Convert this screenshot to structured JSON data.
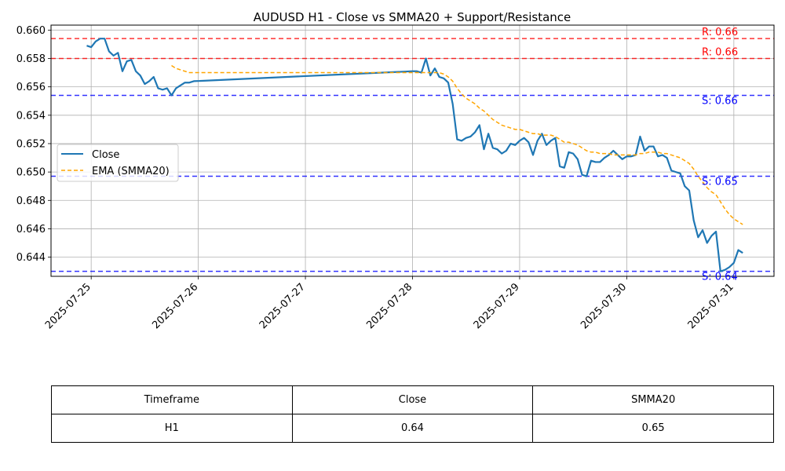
{
  "chart_data": {
    "type": "line",
    "title": "AUDUSD H1 - Close vs SMMA20 + Support/Resistance",
    "xlabel": "",
    "ylabel": "",
    "x_ticks": [
      "2025-07-25",
      "2025-07-26",
      "2025-07-27",
      "2025-07-28",
      "2025-07-29",
      "2025-07-30",
      "2025-07-31"
    ],
    "y_ticks": [
      "0.644",
      "0.646",
      "0.648",
      "0.650",
      "0.652",
      "0.654",
      "0.656",
      "0.658",
      "0.660"
    ],
    "ylim": [
      0.64265,
      0.66035
    ],
    "xlim": [
      "2025-07-24T15:00",
      "2025-07-31T09:00"
    ],
    "grid": true,
    "legend_position": "center-left",
    "series": [
      {
        "name": "Close",
        "color": "#1f77b4",
        "style": "solid",
        "points": [
          [
            "2025-07-24T23:00",
            0.6589
          ],
          [
            "2025-07-25T00:00",
            0.6588
          ],
          [
            "2025-07-25T01:00",
            0.6592
          ],
          [
            "2025-07-25T02:00",
            0.6594
          ],
          [
            "2025-07-25T03:00",
            0.6594
          ],
          [
            "2025-07-25T04:00",
            0.6585
          ],
          [
            "2025-07-25T05:00",
            0.6582
          ],
          [
            "2025-07-25T06:00",
            0.6584
          ],
          [
            "2025-07-25T07:00",
            0.6571
          ],
          [
            "2025-07-25T08:00",
            0.6578
          ],
          [
            "2025-07-25T09:00",
            0.6579
          ],
          [
            "2025-07-25T10:00",
            0.6571
          ],
          [
            "2025-07-25T11:00",
            0.6568
          ],
          [
            "2025-07-25T12:00",
            0.6562
          ],
          [
            "2025-07-25T13:00",
            0.6564
          ],
          [
            "2025-07-25T14:00",
            0.6567
          ],
          [
            "2025-07-25T15:00",
            0.6559
          ],
          [
            "2025-07-25T16:00",
            0.6558
          ],
          [
            "2025-07-25T17:00",
            0.6559
          ],
          [
            "2025-07-25T18:00",
            0.6554
          ],
          [
            "2025-07-25T19:00",
            0.6559
          ],
          [
            "2025-07-25T20:00",
            0.6561
          ],
          [
            "2025-07-25T21:00",
            0.6563
          ],
          [
            "2025-07-25T22:00",
            0.6563
          ],
          [
            "2025-07-25T23:00",
            0.6564
          ],
          [
            "2025-07-28T00:00",
            0.6571
          ],
          [
            "2025-07-28T01:00",
            0.6571
          ],
          [
            "2025-07-28T02:00",
            0.657
          ],
          [
            "2025-07-28T03:00",
            0.658
          ],
          [
            "2025-07-28T04:00",
            0.6568
          ],
          [
            "2025-07-28T05:00",
            0.6573
          ],
          [
            "2025-07-28T06:00",
            0.6567
          ],
          [
            "2025-07-28T07:00",
            0.6566
          ],
          [
            "2025-07-28T08:00",
            0.6563
          ],
          [
            "2025-07-28T09:00",
            0.6548
          ],
          [
            "2025-07-28T10:00",
            0.6523
          ],
          [
            "2025-07-28T11:00",
            0.6522
          ],
          [
            "2025-07-28T12:00",
            0.6524
          ],
          [
            "2025-07-28T13:00",
            0.6525
          ],
          [
            "2025-07-28T14:00",
            0.6528
          ],
          [
            "2025-07-28T15:00",
            0.6533
          ],
          [
            "2025-07-28T16:00",
            0.6516
          ],
          [
            "2025-07-28T17:00",
            0.6527
          ],
          [
            "2025-07-28T18:00",
            0.6517
          ],
          [
            "2025-07-28T19:00",
            0.6516
          ],
          [
            "2025-07-28T20:00",
            0.6513
          ],
          [
            "2025-07-28T21:00",
            0.6515
          ],
          [
            "2025-07-28T22:00",
            0.652
          ],
          [
            "2025-07-28T23:00",
            0.6519
          ],
          [
            "2025-07-29T00:00",
            0.6522
          ],
          [
            "2025-07-29T01:00",
            0.6524
          ],
          [
            "2025-07-29T02:00",
            0.6521
          ],
          [
            "2025-07-29T03:00",
            0.6512
          ],
          [
            "2025-07-29T04:00",
            0.6522
          ],
          [
            "2025-07-29T05:00",
            0.6527
          ],
          [
            "2025-07-29T06:00",
            0.6519
          ],
          [
            "2025-07-29T07:00",
            0.6522
          ],
          [
            "2025-07-29T08:00",
            0.6524
          ],
          [
            "2025-07-29T09:00",
            0.6504
          ],
          [
            "2025-07-29T10:00",
            0.6503
          ],
          [
            "2025-07-29T11:00",
            0.6514
          ],
          [
            "2025-07-29T12:00",
            0.6513
          ],
          [
            "2025-07-29T13:00",
            0.6509
          ],
          [
            "2025-07-29T14:00",
            0.6498
          ],
          [
            "2025-07-29T15:00",
            0.6497
          ],
          [
            "2025-07-29T16:00",
            0.6508
          ],
          [
            "2025-07-29T17:00",
            0.6507
          ],
          [
            "2025-07-29T18:00",
            0.6507
          ],
          [
            "2025-07-29T19:00",
            0.651
          ],
          [
            "2025-07-29T20:00",
            0.6512
          ],
          [
            "2025-07-29T21:00",
            0.6515
          ],
          [
            "2025-07-29T22:00",
            0.6512
          ],
          [
            "2025-07-29T23:00",
            0.6509
          ],
          [
            "2025-07-30T00:00",
            0.6511
          ],
          [
            "2025-07-30T01:00",
            0.6511
          ],
          [
            "2025-07-30T02:00",
            0.6512
          ],
          [
            "2025-07-30T03:00",
            0.6525
          ],
          [
            "2025-07-30T04:00",
            0.6515
          ],
          [
            "2025-07-30T05:00",
            0.6518
          ],
          [
            "2025-07-30T06:00",
            0.6518
          ],
          [
            "2025-07-30T07:00",
            0.6511
          ],
          [
            "2025-07-30T08:00",
            0.6512
          ],
          [
            "2025-07-30T09:00",
            0.651
          ],
          [
            "2025-07-30T10:00",
            0.6501
          ],
          [
            "2025-07-30T11:00",
            0.65
          ],
          [
            "2025-07-30T12:00",
            0.6499
          ],
          [
            "2025-07-30T13:00",
            0.649
          ],
          [
            "2025-07-30T14:00",
            0.6487
          ],
          [
            "2025-07-30T15:00",
            0.6466
          ],
          [
            "2025-07-30T16:00",
            0.6454
          ],
          [
            "2025-07-30T17:00",
            0.6459
          ],
          [
            "2025-07-30T18:00",
            0.645
          ],
          [
            "2025-07-30T19:00",
            0.6455
          ],
          [
            "2025-07-30T20:00",
            0.6458
          ],
          [
            "2025-07-30T21:00",
            0.643
          ],
          [
            "2025-07-30T22:00",
            0.6431
          ],
          [
            "2025-07-30T23:00",
            0.6433
          ],
          [
            "2025-07-31T00:00",
            0.6436
          ],
          [
            "2025-07-31T01:00",
            0.6445
          ],
          [
            "2025-07-31T02:00",
            0.6443
          ]
        ]
      },
      {
        "name": "EMA (SMMA20)",
        "color": "#ffa500",
        "style": "dashed",
        "points": [
          [
            "2025-07-25T18:00",
            0.6575
          ],
          [
            "2025-07-25T19:00",
            0.6573
          ],
          [
            "2025-07-25T20:00",
            0.6572
          ],
          [
            "2025-07-25T21:00",
            0.6571
          ],
          [
            "2025-07-25T22:00",
            0.657
          ],
          [
            "2025-07-25T23:00",
            0.657
          ],
          [
            "2025-07-28T00:00",
            0.657
          ],
          [
            "2025-07-28T01:00",
            0.657
          ],
          [
            "2025-07-28T02:00",
            0.657
          ],
          [
            "2025-07-28T03:00",
            0.657
          ],
          [
            "2025-07-28T04:00",
            0.657
          ],
          [
            "2025-07-28T05:00",
            0.657
          ],
          [
            "2025-07-28T06:00",
            0.657
          ],
          [
            "2025-07-28T07:00",
            0.6569
          ],
          [
            "2025-07-28T08:00",
            0.6567
          ],
          [
            "2025-07-28T09:00",
            0.6564
          ],
          [
            "2025-07-28T10:00",
            0.6559
          ],
          [
            "2025-07-28T11:00",
            0.6555
          ],
          [
            "2025-07-28T12:00",
            0.6552
          ],
          [
            "2025-07-28T13:00",
            0.655
          ],
          [
            "2025-07-28T14:00",
            0.6548
          ],
          [
            "2025-07-28T15:00",
            0.6545
          ],
          [
            "2025-07-28T16:00",
            0.6543
          ],
          [
            "2025-07-28T17:00",
            0.654
          ],
          [
            "2025-07-28T18:00",
            0.6537
          ],
          [
            "2025-07-28T19:00",
            0.6535
          ],
          [
            "2025-07-28T20:00",
            0.6533
          ],
          [
            "2025-07-28T21:00",
            0.6532
          ],
          [
            "2025-07-28T22:00",
            0.6531
          ],
          [
            "2025-07-28T23:00",
            0.653
          ],
          [
            "2025-07-29T00:00",
            0.653
          ],
          [
            "2025-07-29T01:00",
            0.6529
          ],
          [
            "2025-07-29T02:00",
            0.6528
          ],
          [
            "2025-07-29T03:00",
            0.6527
          ],
          [
            "2025-07-29T04:00",
            0.6527
          ],
          [
            "2025-07-29T05:00",
            0.6526
          ],
          [
            "2025-07-29T06:00",
            0.6526
          ],
          [
            "2025-07-29T07:00",
            0.6526
          ],
          [
            "2025-07-29T08:00",
            0.6525
          ],
          [
            "2025-07-29T09:00",
            0.6523
          ],
          [
            "2025-07-29T10:00",
            0.6521
          ],
          [
            "2025-07-29T11:00",
            0.6521
          ],
          [
            "2025-07-29T12:00",
            0.652
          ],
          [
            "2025-07-29T13:00",
            0.6519
          ],
          [
            "2025-07-29T14:00",
            0.6517
          ],
          [
            "2025-07-29T15:00",
            0.6515
          ],
          [
            "2025-07-29T16:00",
            0.6514
          ],
          [
            "2025-07-29T17:00",
            0.6514
          ],
          [
            "2025-07-29T18:00",
            0.6513
          ],
          [
            "2025-07-29T19:00",
            0.6513
          ],
          [
            "2025-07-29T20:00",
            0.6513
          ],
          [
            "2025-07-29T21:00",
            0.6512
          ],
          [
            "2025-07-29T22:00",
            0.6512
          ],
          [
            "2025-07-29T23:00",
            0.6512
          ],
          [
            "2025-07-30T00:00",
            0.6512
          ],
          [
            "2025-07-30T01:00",
            0.6512
          ],
          [
            "2025-07-30T02:00",
            0.6512
          ],
          [
            "2025-07-30T03:00",
            0.6513
          ],
          [
            "2025-07-30T04:00",
            0.6513
          ],
          [
            "2025-07-30T05:00",
            0.6514
          ],
          [
            "2025-07-30T06:00",
            0.6514
          ],
          [
            "2025-07-30T07:00",
            0.6514
          ],
          [
            "2025-07-30T08:00",
            0.6513
          ],
          [
            "2025-07-30T09:00",
            0.6513
          ],
          [
            "2025-07-30T10:00",
            0.6512
          ],
          [
            "2025-07-30T11:00",
            0.6511
          ],
          [
            "2025-07-30T12:00",
            0.651
          ],
          [
            "2025-07-30T13:00",
            0.6508
          ],
          [
            "2025-07-30T14:00",
            0.6506
          ],
          [
            "2025-07-30T15:00",
            0.6502
          ],
          [
            "2025-07-30T16:00",
            0.6497
          ],
          [
            "2025-07-30T17:00",
            0.6493
          ],
          [
            "2025-07-30T18:00",
            0.6489
          ],
          [
            "2025-07-30T19:00",
            0.6486
          ],
          [
            "2025-07-30T20:00",
            0.6484
          ],
          [
            "2025-07-30T21:00",
            0.6479
          ],
          [
            "2025-07-30T22:00",
            0.6474
          ],
          [
            "2025-07-30T23:00",
            0.647
          ],
          [
            "2025-07-31T00:00",
            0.6467
          ],
          [
            "2025-07-31T01:00",
            0.6465
          ],
          [
            "2025-07-31T02:00",
            0.6463
          ]
        ]
      }
    ],
    "levels": [
      {
        "kind": "resistance",
        "value": 0.6594,
        "label": "R: 0.66",
        "color": "#ff0000"
      },
      {
        "kind": "resistance",
        "value": 0.658,
        "label": "R: 0.66",
        "color": "#ff0000"
      },
      {
        "kind": "support",
        "value": 0.6554,
        "label": "S: 0.66",
        "color": "#0000ff"
      },
      {
        "kind": "support",
        "value": 0.6497,
        "label": "S: 0.65",
        "color": "#0000ff"
      },
      {
        "kind": "support",
        "value": 0.643,
        "label": "S: 0.64",
        "color": "#0000ff"
      }
    ]
  },
  "table": {
    "headers": [
      "Timeframe",
      "Close",
      "SMMA20"
    ],
    "row": [
      "H1",
      "0.64",
      "0.65"
    ]
  }
}
